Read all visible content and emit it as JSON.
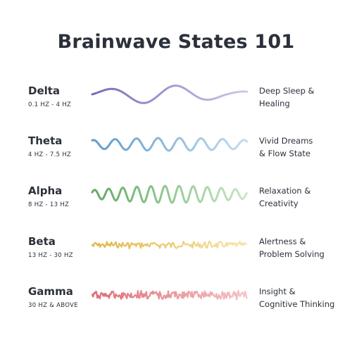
{
  "title": "Brainwave States 101",
  "states": [
    {
      "name": "Delta",
      "range": "0.1 HZ - 4 HZ",
      "desc": [
        "Deep Sleep &",
        "Healing"
      ],
      "color_start": "#7b6bb5",
      "color_end": "#cfc8ea"
    },
    {
      "name": "Theta",
      "range": "4 HZ - 7.5 HZ",
      "desc": [
        "Vivid Dreams",
        "& Flow State"
      ],
      "color_start": "#5f9ccb",
      "color_end": "#c3dcef"
    },
    {
      "name": "Alpha",
      "range": "8 HZ - 13 HZ",
      "desc": [
        "Relaxation &",
        "Creativity"
      ],
      "color_start": "#62ab63",
      "color_end": "#c8e6c5"
    },
    {
      "name": "Beta",
      "range": "13 HZ - 30 HZ",
      "desc": [
        "Alertness &",
        "Problem Solving"
      ],
      "color_start": "#e0b545",
      "color_end": "#f7e3a8"
    },
    {
      "name": "Gamma",
      "range": "30 HZ & ABOVE",
      "desc": [
        "Insight &",
        "Cognitive Thinking"
      ],
      "color_start": "#e06a73",
      "color_end": "#f4c3c6"
    }
  ]
}
